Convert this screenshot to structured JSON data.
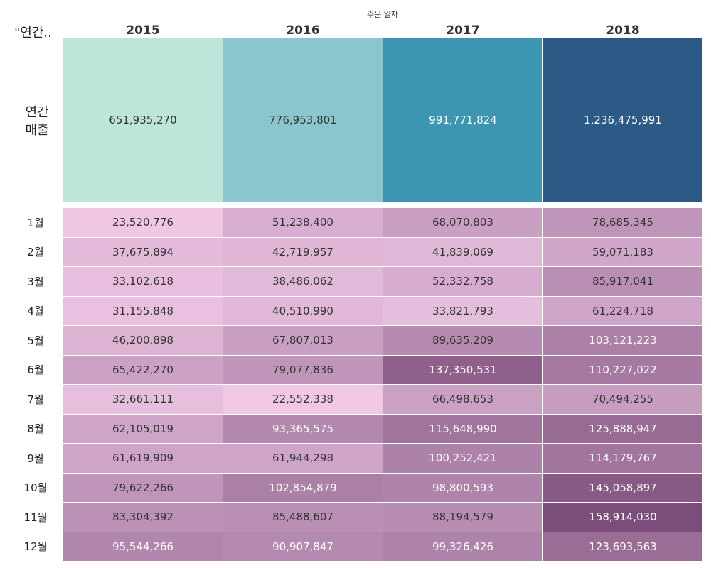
{
  "column_axis_title": "주문 일자",
  "row_header_title": "\"연간..",
  "annual_label_line1": "연간",
  "annual_label_line2": "매출",
  "chart_data": {
    "type": "table",
    "columns": [
      "2015",
      "2016",
      "2017",
      "2018"
    ],
    "annual": {
      "label": "연간 매출",
      "display": [
        "651,935,270",
        "776,953,801",
        "991,771,824",
        "1,236,475,991"
      ],
      "values": [
        651935270,
        776953801,
        991771824,
        1236475991
      ],
      "colors": [
        "#bde5d9",
        "#8bc6ce",
        "#3c96b2",
        "#2b5a86"
      ],
      "text_colors": [
        "#333333",
        "#333333",
        "#ffffff",
        "#ffffff"
      ]
    },
    "months": [
      {
        "label": "1월",
        "display": [
          "23,520,776",
          "51,238,400",
          "68,070,803",
          "78,685,345"
        ],
        "values": [
          23520776,
          51238400,
          68070803,
          78685345
        ]
      },
      {
        "label": "2월",
        "display": [
          "37,675,894",
          "42,719,957",
          "41,839,069",
          "59,071,183"
        ],
        "values": [
          37675894,
          42719957,
          41839069,
          59071183
        ]
      },
      {
        "label": "3월",
        "display": [
          "33,102,618",
          "38,486,062",
          "52,332,758",
          "85,917,041"
        ],
        "values": [
          33102618,
          38486062,
          52332758,
          85917041
        ]
      },
      {
        "label": "4월",
        "display": [
          "31,155,848",
          "40,510,990",
          "33,821,793",
          "61,224,718"
        ],
        "values": [
          31155848,
          40510990,
          33821793,
          61224718
        ]
      },
      {
        "label": "5월",
        "display": [
          "46,200,898",
          "67,807,013",
          "89,635,209",
          "103,121,223"
        ],
        "values": [
          46200898,
          67807013,
          89635209,
          103121223
        ]
      },
      {
        "label": "6월",
        "display": [
          "65,422,270",
          "79,077,836",
          "137,350,531",
          "110,227,022"
        ],
        "values": [
          65422270,
          79077836,
          137350531,
          110227022
        ]
      },
      {
        "label": "7월",
        "display": [
          "32,661,111",
          "22,552,338",
          "66,498,653",
          "70,494,255"
        ],
        "values": [
          32661111,
          22552338,
          66498653,
          70494255
        ]
      },
      {
        "label": "8월",
        "display": [
          "62,105,019",
          "93,365,575",
          "115,648,990",
          "125,888,947"
        ],
        "values": [
          62105019,
          93365575,
          115648990,
          125888947
        ]
      },
      {
        "label": "9월",
        "display": [
          "61,619,909",
          "61,944,298",
          "100,252,421",
          "114,179,767"
        ],
        "values": [
          61619909,
          61944298,
          100252421,
          114179767
        ]
      },
      {
        "label": "10월",
        "display": [
          "79,622,266",
          "102,854,879",
          "98,800,593",
          "145,058,897"
        ],
        "values": [
          79622266,
          102854879,
          98800593,
          145058897
        ]
      },
      {
        "label": "11월",
        "display": [
          "83,304,392",
          "85,488,607",
          "88,194,579",
          "158,914,030"
        ],
        "values": [
          83304392,
          85488607,
          88194579,
          158914030
        ]
      },
      {
        "label": "12월",
        "display": [
          "95,544,266",
          "90,907,847",
          "99,326,426",
          "123,693,563"
        ],
        "values": [
          95544266,
          90907847,
          99326426,
          123693563
        ]
      }
    ],
    "monthly_color_scale": {
      "low": "#f0c8e6",
      "high": "#7b4d7a",
      "min": 22552338,
      "max": 158914030
    },
    "monthly_text_dark": "#333333",
    "monthly_text_light": "#ffffff"
  }
}
